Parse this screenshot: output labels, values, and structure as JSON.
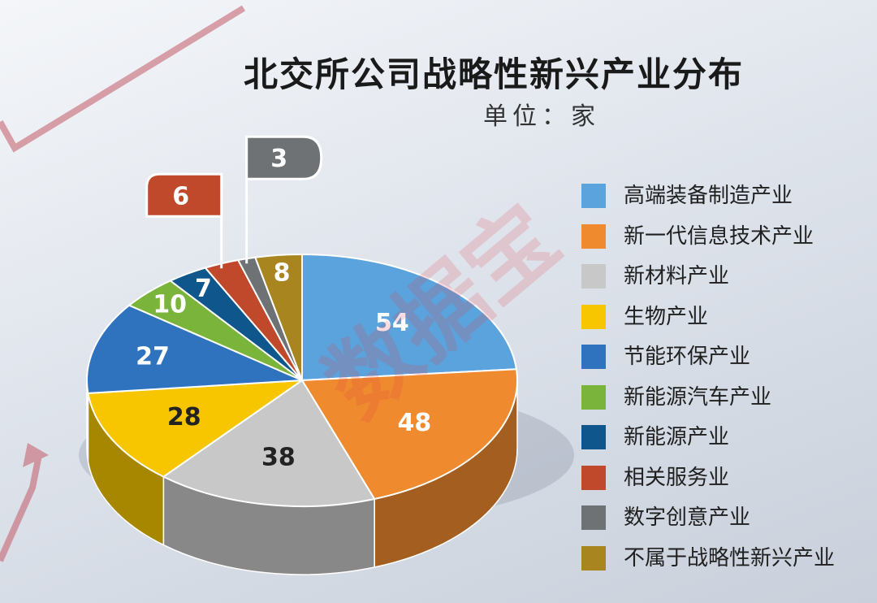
{
  "chart_data": {
    "type": "pie",
    "title": "北交所公司战略性新兴产业分布",
    "subtitle": "单位：家",
    "categories": [
      "高端装备制造产业",
      "新一代信息技术产业",
      "新材料产业",
      "生物产业",
      "节能环保产业",
      "新能源汽车产业",
      "新能源产业",
      "相关服务业",
      "数字创意产业",
      "不属于战略性新兴产业"
    ],
    "values": [
      54,
      48,
      38,
      28,
      27,
      10,
      7,
      6,
      3,
      8
    ],
    "colors": [
      "#5ba3dc",
      "#ef8a2f",
      "#c8c8c8",
      "#f7c600",
      "#2f73bf",
      "#7bb43a",
      "#0f568c",
      "#c0492b",
      "#6e7275",
      "#a8851f"
    ],
    "label_colors": [
      "#ffffff",
      "#ffffff",
      "#222222",
      "#222222",
      "#ffffff",
      "#ffffff",
      "#ffffff",
      "#ffffff",
      "#ffffff",
      "#ffffff"
    ],
    "legend_position": "right"
  },
  "watermark": "数据宝"
}
